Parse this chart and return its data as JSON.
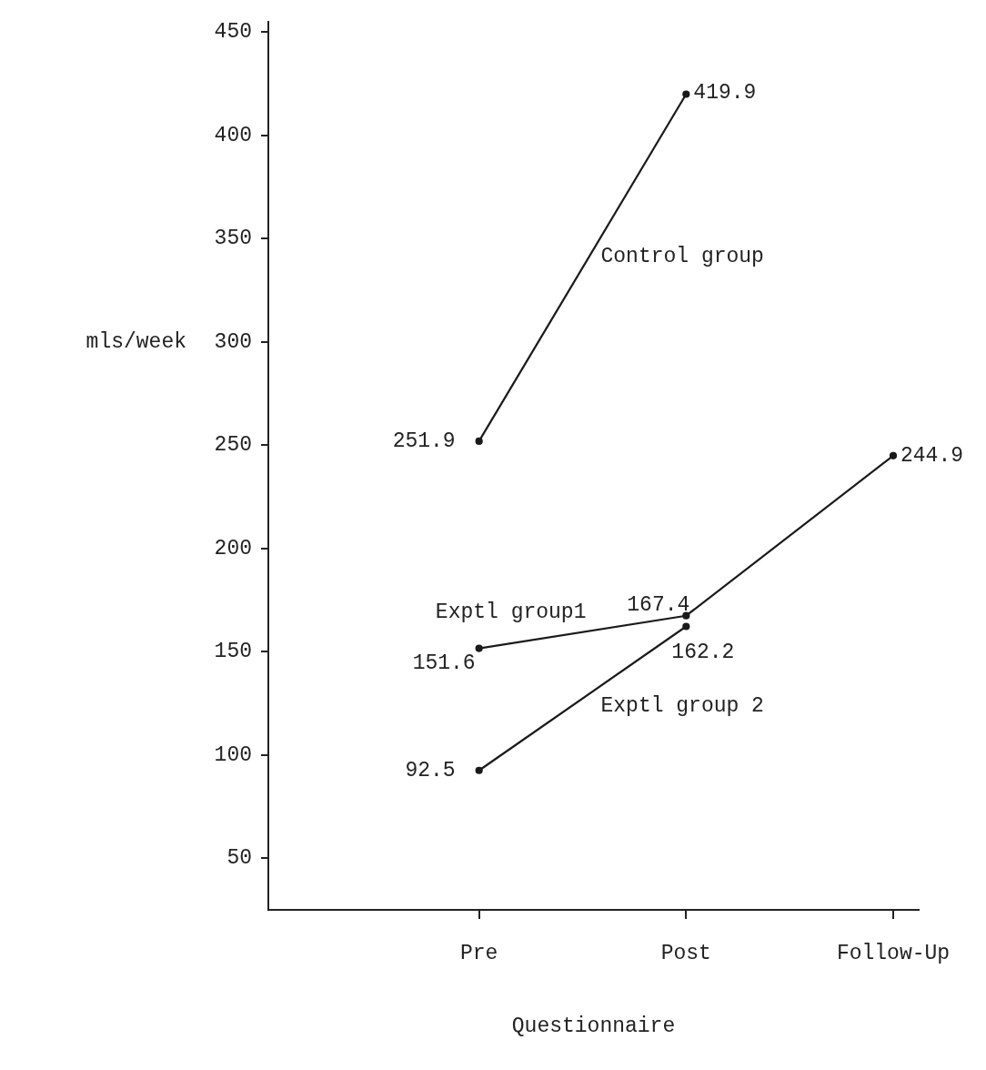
{
  "chart_data": {
    "type": "line",
    "xlabel": "Questionnaire",
    "ylabel": "mls/week",
    "categories": [
      "Pre",
      "Post",
      "Follow-Up"
    ],
    "series": [
      {
        "name": "Control group",
        "color": "#1a1a1a",
        "values": [
          251.9,
          419.9,
          null
        ]
      },
      {
        "name": "Exptl group1",
        "color": "#1a1a1a",
        "values": [
          151.6,
          167.4,
          244.9
        ]
      },
      {
        "name": "Exptl group 2",
        "color": "#1a1a1a",
        "values": [
          92.5,
          162.2,
          null
        ]
      }
    ],
    "ylim": [
      25,
      455
    ],
    "yticks": [
      50,
      100,
      150,
      200,
      250,
      300,
      350,
      400,
      450
    ],
    "grid": false,
    "legend": false,
    "marker": "circle",
    "line_style": "solid",
    "data_labels": true
  }
}
